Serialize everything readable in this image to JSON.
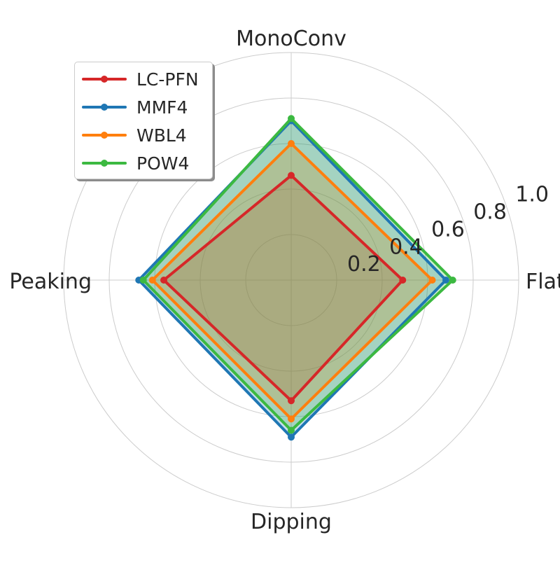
{
  "chart_data": {
    "type": "radar",
    "axes": [
      "MonoConv",
      "Flat",
      "Dipping",
      "Peaking"
    ],
    "r_ticks": [
      0.2,
      0.4,
      0.6,
      0.8,
      1.0
    ],
    "r_tick_labels": [
      "0.2",
      "0.4",
      "0.6",
      "0.8",
      "1.0"
    ],
    "rlim": [
      0,
      1.0
    ],
    "grid": true,
    "legend_position": "top-left",
    "series": [
      {
        "name": "LC-PFN",
        "color": "#d62728",
        "values": [
          0.46,
          0.49,
          0.53,
          0.56
        ]
      },
      {
        "name": "MMF4",
        "color": "#1f77b4",
        "values": [
          0.7,
          0.68,
          0.69,
          0.67
        ]
      },
      {
        "name": "WBL4",
        "color": "#ff7f0e",
        "values": [
          0.6,
          0.62,
          0.61,
          0.61
        ]
      },
      {
        "name": "POW4",
        "color": "#3cb941",
        "values": [
          0.71,
          0.71,
          0.66,
          0.65
        ]
      }
    ]
  }
}
